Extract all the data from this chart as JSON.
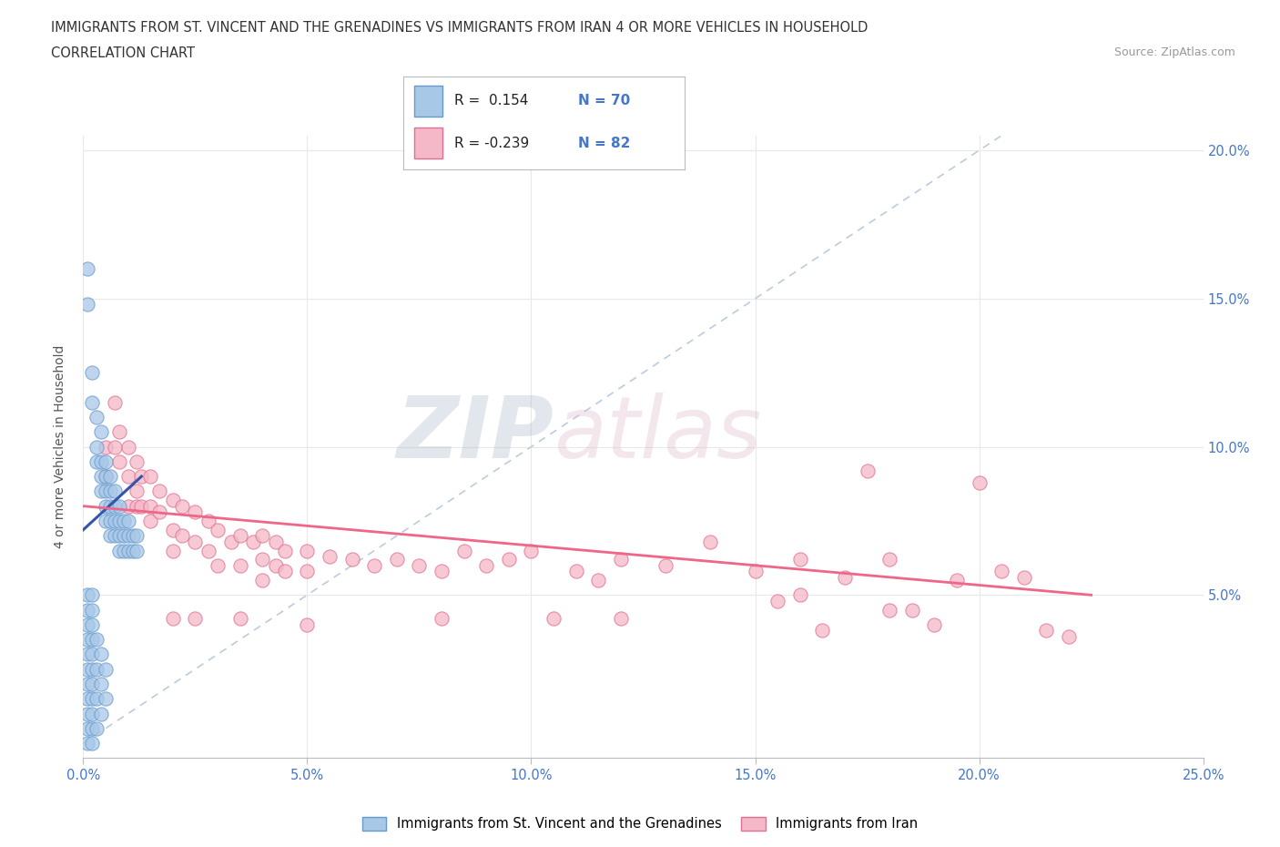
{
  "title_line1": "IMMIGRANTS FROM ST. VINCENT AND THE GRENADINES VS IMMIGRANTS FROM IRAN 4 OR MORE VEHICLES IN HOUSEHOLD",
  "title_line2": "CORRELATION CHART",
  "source_text": "Source: ZipAtlas.com",
  "ylabel": "4 or more Vehicles in Household",
  "xlim": [
    0.0,
    0.25
  ],
  "ylim": [
    -0.005,
    0.205
  ],
  "xtick_values": [
    0.0,
    0.05,
    0.1,
    0.15,
    0.2,
    0.25
  ],
  "xtick_labels": [
    "0.0%",
    "5.0%",
    "10.0%",
    "15.0%",
    "20.0%",
    "25.0%"
  ],
  "ytick_values": [
    0.05,
    0.1,
    0.15,
    0.2
  ],
  "ytick_labels": [
    "5.0%",
    "10.0%",
    "15.0%",
    "20.0%"
  ],
  "watermark_zip": "ZIP",
  "watermark_atlas": "atlas",
  "legend_text1": "R =  0.154  N = 70",
  "legend_text2": "R = -0.239  N = 82",
  "color_blue_fill": "#A8C8E8",
  "color_blue_edge": "#6699CC",
  "color_pink_fill": "#F4B8C8",
  "color_pink_edge": "#E07090",
  "line_color_blue": "#3355AA",
  "line_color_pink": "#EE6688",
  "dashed_line_color": "#BBCCDD",
  "grid_color": "#E8E8E8",
  "scatter_blue": [
    [
      0.001,
      0.16
    ],
    [
      0.001,
      0.148
    ],
    [
      0.002,
      0.125
    ],
    [
      0.002,
      0.115
    ],
    [
      0.003,
      0.11
    ],
    [
      0.003,
      0.1
    ],
    [
      0.003,
      0.095
    ],
    [
      0.004,
      0.105
    ],
    [
      0.004,
      0.095
    ],
    [
      0.004,
      0.09
    ],
    [
      0.004,
      0.085
    ],
    [
      0.005,
      0.095
    ],
    [
      0.005,
      0.09
    ],
    [
      0.005,
      0.085
    ],
    [
      0.005,
      0.08
    ],
    [
      0.005,
      0.075
    ],
    [
      0.006,
      0.09
    ],
    [
      0.006,
      0.085
    ],
    [
      0.006,
      0.08
    ],
    [
      0.006,
      0.075
    ],
    [
      0.006,
      0.07
    ],
    [
      0.007,
      0.085
    ],
    [
      0.007,
      0.08
    ],
    [
      0.007,
      0.075
    ],
    [
      0.007,
      0.07
    ],
    [
      0.008,
      0.08
    ],
    [
      0.008,
      0.075
    ],
    [
      0.008,
      0.07
    ],
    [
      0.008,
      0.065
    ],
    [
      0.009,
      0.075
    ],
    [
      0.009,
      0.07
    ],
    [
      0.009,
      0.065
    ],
    [
      0.01,
      0.075
    ],
    [
      0.01,
      0.07
    ],
    [
      0.01,
      0.065
    ],
    [
      0.011,
      0.07
    ],
    [
      0.011,
      0.065
    ],
    [
      0.012,
      0.07
    ],
    [
      0.012,
      0.065
    ],
    [
      0.001,
      0.05
    ],
    [
      0.001,
      0.045
    ],
    [
      0.001,
      0.04
    ],
    [
      0.001,
      0.035
    ],
    [
      0.001,
      0.03
    ],
    [
      0.001,
      0.025
    ],
    [
      0.001,
      0.02
    ],
    [
      0.001,
      0.015
    ],
    [
      0.001,
      0.01
    ],
    [
      0.001,
      0.005
    ],
    [
      0.001,
      0.0
    ],
    [
      0.002,
      0.05
    ],
    [
      0.002,
      0.045
    ],
    [
      0.002,
      0.04
    ],
    [
      0.002,
      0.035
    ],
    [
      0.002,
      0.03
    ],
    [
      0.002,
      0.025
    ],
    [
      0.002,
      0.02
    ],
    [
      0.002,
      0.015
    ],
    [
      0.002,
      0.01
    ],
    [
      0.002,
      0.005
    ],
    [
      0.002,
      0.0
    ],
    [
      0.003,
      0.035
    ],
    [
      0.003,
      0.025
    ],
    [
      0.003,
      0.015
    ],
    [
      0.003,
      0.005
    ],
    [
      0.004,
      0.03
    ],
    [
      0.004,
      0.02
    ],
    [
      0.004,
      0.01
    ],
    [
      0.005,
      0.025
    ],
    [
      0.005,
      0.015
    ]
  ],
  "scatter_pink": [
    [
      0.005,
      0.1
    ],
    [
      0.005,
      0.09
    ],
    [
      0.007,
      0.115
    ],
    [
      0.007,
      0.1
    ],
    [
      0.008,
      0.105
    ],
    [
      0.008,
      0.095
    ],
    [
      0.01,
      0.1
    ],
    [
      0.01,
      0.09
    ],
    [
      0.01,
      0.08
    ],
    [
      0.012,
      0.095
    ],
    [
      0.012,
      0.085
    ],
    [
      0.012,
      0.08
    ],
    [
      0.013,
      0.09
    ],
    [
      0.013,
      0.08
    ],
    [
      0.015,
      0.09
    ],
    [
      0.015,
      0.08
    ],
    [
      0.015,
      0.075
    ],
    [
      0.017,
      0.085
    ],
    [
      0.017,
      0.078
    ],
    [
      0.02,
      0.082
    ],
    [
      0.02,
      0.072
    ],
    [
      0.02,
      0.065
    ],
    [
      0.022,
      0.08
    ],
    [
      0.022,
      0.07
    ],
    [
      0.025,
      0.078
    ],
    [
      0.025,
      0.068
    ],
    [
      0.028,
      0.075
    ],
    [
      0.028,
      0.065
    ],
    [
      0.03,
      0.072
    ],
    [
      0.03,
      0.06
    ],
    [
      0.033,
      0.068
    ],
    [
      0.035,
      0.07
    ],
    [
      0.035,
      0.06
    ],
    [
      0.038,
      0.068
    ],
    [
      0.04,
      0.07
    ],
    [
      0.04,
      0.062
    ],
    [
      0.04,
      0.055
    ],
    [
      0.043,
      0.068
    ],
    [
      0.043,
      0.06
    ],
    [
      0.045,
      0.065
    ],
    [
      0.045,
      0.058
    ],
    [
      0.05,
      0.065
    ],
    [
      0.05,
      0.058
    ],
    [
      0.055,
      0.063
    ],
    [
      0.06,
      0.062
    ],
    [
      0.065,
      0.06
    ],
    [
      0.07,
      0.062
    ],
    [
      0.075,
      0.06
    ],
    [
      0.08,
      0.058
    ],
    [
      0.085,
      0.065
    ],
    [
      0.09,
      0.06
    ],
    [
      0.095,
      0.062
    ],
    [
      0.1,
      0.065
    ],
    [
      0.105,
      0.042
    ],
    [
      0.11,
      0.058
    ],
    [
      0.115,
      0.055
    ],
    [
      0.12,
      0.062
    ],
    [
      0.13,
      0.06
    ],
    [
      0.14,
      0.068
    ],
    [
      0.15,
      0.058
    ],
    [
      0.155,
      0.048
    ],
    [
      0.16,
      0.062
    ],
    [
      0.165,
      0.038
    ],
    [
      0.17,
      0.056
    ],
    [
      0.175,
      0.092
    ],
    [
      0.18,
      0.062
    ],
    [
      0.185,
      0.045
    ],
    [
      0.19,
      0.04
    ],
    [
      0.195,
      0.055
    ],
    [
      0.2,
      0.088
    ],
    [
      0.205,
      0.058
    ],
    [
      0.21,
      0.056
    ],
    [
      0.215,
      0.038
    ],
    [
      0.22,
      0.036
    ],
    [
      0.02,
      0.042
    ],
    [
      0.025,
      0.042
    ],
    [
      0.035,
      0.042
    ],
    [
      0.05,
      0.04
    ],
    [
      0.08,
      0.042
    ],
    [
      0.12,
      0.042
    ],
    [
      0.16,
      0.05
    ],
    [
      0.18,
      0.045
    ]
  ]
}
